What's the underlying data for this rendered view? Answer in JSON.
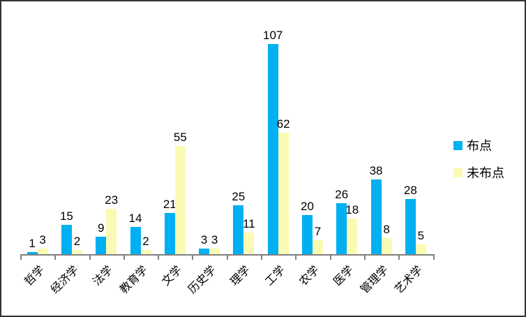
{
  "chart_data": {
    "type": "bar",
    "categories": [
      "哲学",
      "经济学",
      "法学",
      "教育学",
      "文学",
      "历史学",
      "理学",
      "工学",
      "农学",
      "医学",
      "管理学",
      "艺术学"
    ],
    "series": [
      {
        "name": "布点",
        "color": "#00B0F0",
        "values": [
          1,
          15,
          9,
          14,
          21,
          3,
          25,
          107,
          20,
          26,
          38,
          28
        ]
      },
      {
        "name": "未布点",
        "color": "#FAFAB4",
        "values": [
          3,
          2,
          23,
          2,
          55,
          3,
          11,
          62,
          7,
          18,
          8,
          5
        ]
      }
    ],
    "title": "",
    "xlabel": "",
    "ylabel": "",
    "ylim": [
      0,
      110
    ],
    "grid": false,
    "data_labels": true,
    "legend_position": "right"
  },
  "colors": {
    "axis": "#808080",
    "label_text": "#000000",
    "frame_border": "#333333",
    "background": "#FFFFFF"
  }
}
